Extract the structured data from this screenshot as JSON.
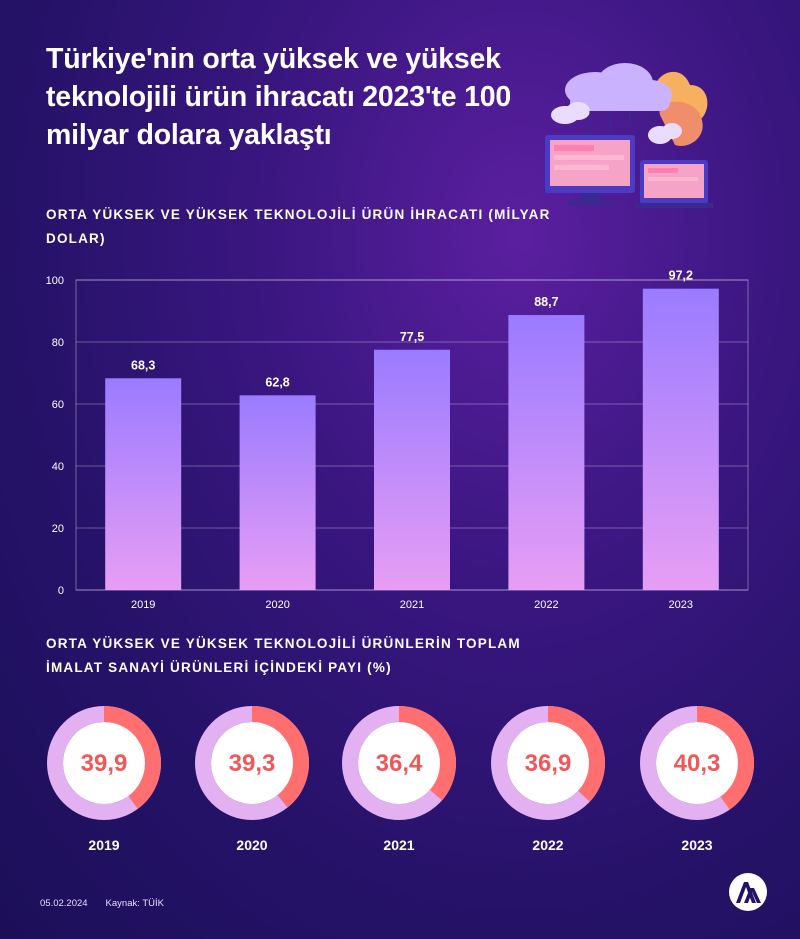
{
  "title": "Türkiye'nin orta yüksek ve yüksek teknolojili ürün ihracatı 2023'te 100 milyar dolara yaklaştı",
  "chart_data": [
    {
      "type": "bar",
      "title": "ORTA YÜKSEK VE YÜKSEK TEKNOLOJİLİ ÜRÜN İHRACATI (MİLYAR DOLAR)",
      "categories": [
        "2019",
        "2020",
        "2021",
        "2022",
        "2023"
      ],
      "values": [
        68.3,
        62.8,
        77.5,
        88.7,
        97.2
      ],
      "value_labels": [
        "68,3",
        "62,8",
        "77,5",
        "88,7",
        "97,2"
      ],
      "yticks": [
        "0",
        "20",
        "40",
        "60",
        "80",
        "100"
      ],
      "ylim": [
        0,
        100
      ],
      "grid": true
    },
    {
      "type": "pie",
      "title": "ORTA YÜKSEK VE YÜKSEK TEKNOLOJİLİ ÜRÜNLERİN TOPLAM İMALAT SANAYİ ÜRÜNLERİ İÇİNDEKİ PAYI (%)",
      "categories": [
        "2019",
        "2020",
        "2021",
        "2022",
        "2023"
      ],
      "values": [
        39.9,
        39.3,
        36.4,
        36.9,
        40.3
      ],
      "value_labels": [
        "39,9",
        "39,3",
        "36,4",
        "36,9",
        "40,3"
      ]
    }
  ],
  "footer": {
    "date": "05.02.2024",
    "source": "Kaynak: TÜİK"
  },
  "colors": {
    "bar_top": "#9a7bff",
    "bar_bottom": "#e79ef4",
    "donut_highlight": "#ff6f6f",
    "donut_rest": "#e3b0f2",
    "donut_center": "#ffffff",
    "donut_text": "#f05858"
  }
}
